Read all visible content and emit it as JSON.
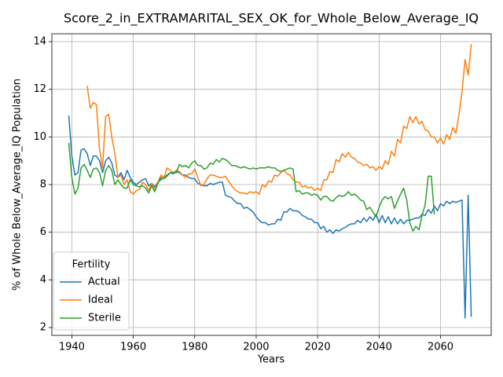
{
  "chart_data": {
    "type": "line",
    "title": "Score_2_in_EXTRAMARITAL_SEX_OK_for_Whole_Below_Average_IQ",
    "xlabel": "Years",
    "ylabel": "% of Whole Below_Average_IQ Population",
    "x": [
      1939,
      1940,
      1941,
      1942,
      1943,
      1944,
      1945,
      1946,
      1947,
      1948,
      1949,
      1950,
      1951,
      1952,
      1953,
      1954,
      1955,
      1956,
      1957,
      1958,
      1959,
      1960,
      1961,
      1962,
      1963,
      1964,
      1965,
      1966,
      1967,
      1968,
      1969,
      1970,
      1971,
      1972,
      1973,
      1974,
      1975,
      1976,
      1977,
      1978,
      1979,
      1980,
      1981,
      1982,
      1983,
      1984,
      1985,
      1986,
      1987,
      1988,
      1989,
      1990,
      1991,
      1992,
      1993,
      1994,
      1995,
      1996,
      1997,
      1998,
      1999,
      2000,
      2001,
      2002,
      2003,
      2004,
      2005,
      2006,
      2007,
      2008,
      2009,
      2010,
      2011,
      2012,
      2013,
      2014,
      2015,
      2016,
      2017,
      2018,
      2019,
      2020,
      2021,
      2022,
      2023,
      2024,
      2025,
      2026,
      2027,
      2028,
      2029,
      2030,
      2031,
      2032,
      2033,
      2034,
      2035,
      2036,
      2037,
      2038,
      2039,
      2040,
      2041,
      2042,
      2043,
      2044,
      2045,
      2046,
      2047,
      2048,
      2049,
      2050,
      2051,
      2052,
      2053,
      2054,
      2055,
      2056,
      2057,
      2058,
      2059,
      2060,
      2061,
      2062,
      2063,
      2064,
      2065,
      2066,
      2067,
      2068,
      2069,
      2070
    ],
    "series": [
      {
        "name": "Actual",
        "color": "#1f77b4",
        "values": [
          10.9,
          9.2,
          8.4,
          8.5,
          9.45,
          9.5,
          9.3,
          8.8,
          9.2,
          9.2,
          9.0,
          8.5,
          9.0,
          9.15,
          8.9,
          8.4,
          8.3,
          8.5,
          8.2,
          8.6,
          8.3,
          8.1,
          8.0,
          8.1,
          8.2,
          8.25,
          7.95,
          8.05,
          7.9,
          8.1,
          8.2,
          8.3,
          8.4,
          8.5,
          8.45,
          8.55,
          8.5,
          8.4,
          8.4,
          8.3,
          8.25,
          8.25,
          8.05,
          8.0,
          7.95,
          7.95,
          8.05,
          8.0,
          8.05,
          8.1,
          8.1,
          7.55,
          7.5,
          7.45,
          7.3,
          7.2,
          7.2,
          7.0,
          7.05,
          6.95,
          6.85,
          6.65,
          6.5,
          6.4,
          6.4,
          6.3,
          6.35,
          6.35,
          6.55,
          6.5,
          6.85,
          6.85,
          7.0,
          6.9,
          6.9,
          6.85,
          6.7,
          6.65,
          6.55,
          6.55,
          6.4,
          6.4,
          6.15,
          6.25,
          6.0,
          6.1,
          5.95,
          6.1,
          6.05,
          6.15,
          6.2,
          6.3,
          6.35,
          6.35,
          6.5,
          6.4,
          6.6,
          6.45,
          6.65,
          6.5,
          6.75,
          6.4,
          6.7,
          6.4,
          6.65,
          6.35,
          6.6,
          6.35,
          6.55,
          6.35,
          6.5,
          6.5,
          6.55,
          6.6,
          6.6,
          6.75,
          6.7,
          6.95,
          6.8,
          7.1,
          6.9,
          7.2,
          7.1,
          7.3,
          7.2,
          7.3,
          7.25,
          7.3,
          7.35,
          2.4,
          7.55,
          2.45
        ]
      },
      {
        "name": "Ideal",
        "color": "#ff7f0e",
        "values": [
          null,
          null,
          null,
          null,
          null,
          null,
          12.15,
          11.2,
          11.45,
          11.35,
          9.5,
          8.7,
          10.85,
          10.95,
          10.0,
          9.3,
          8.3,
          8.4,
          8.0,
          8.2,
          7.7,
          7.6,
          7.75,
          7.8,
          8.1,
          8.0,
          7.75,
          8.05,
          7.75,
          8.1,
          8.4,
          8.3,
          8.7,
          8.6,
          8.5,
          8.6,
          8.55,
          8.4,
          8.3,
          8.45,
          8.45,
          8.65,
          8.3,
          7.95,
          8.0,
          8.25,
          8.4,
          8.4,
          8.35,
          8.3,
          8.3,
          8.35,
          8.15,
          7.95,
          7.8,
          7.7,
          7.65,
          7.65,
          7.6,
          7.7,
          7.65,
          7.7,
          7.6,
          8.0,
          7.9,
          8.15,
          8.1,
          8.4,
          8.35,
          8.5,
          8.6,
          8.45,
          8.4,
          8.2,
          8.1,
          8.1,
          7.9,
          7.95,
          7.85,
          7.9,
          7.75,
          7.85,
          7.75,
          8.2,
          8.2,
          8.55,
          8.5,
          9.05,
          8.95,
          9.3,
          9.15,
          9.35,
          9.15,
          9.1,
          8.95,
          8.9,
          8.8,
          8.85,
          8.7,
          8.75,
          8.6,
          8.75,
          8.65,
          9.0,
          8.85,
          9.4,
          9.2,
          9.9,
          9.75,
          10.45,
          10.35,
          10.85,
          10.6,
          10.85,
          10.55,
          10.65,
          10.3,
          10.25,
          10.0,
          10.0,
          9.75,
          9.95,
          9.7,
          10.1,
          9.9,
          10.4,
          10.15,
          10.95,
          11.9,
          13.25,
          12.6,
          13.9
        ]
      },
      {
        "name": "Sterile",
        "color": "#2ca02c",
        "values": [
          9.75,
          8.3,
          7.6,
          7.85,
          8.7,
          8.85,
          8.6,
          8.3,
          8.65,
          8.7,
          8.5,
          7.95,
          8.6,
          8.8,
          8.6,
          8.0,
          8.2,
          8.0,
          7.85,
          7.85,
          8.2,
          8.0,
          7.95,
          7.9,
          7.95,
          7.85,
          7.65,
          7.95,
          7.7,
          8.05,
          8.3,
          8.25,
          8.35,
          8.5,
          8.5,
          8.5,
          8.85,
          8.75,
          8.8,
          8.7,
          8.9,
          9.0,
          8.8,
          8.8,
          8.65,
          8.7,
          8.9,
          8.85,
          9.05,
          8.95,
          9.1,
          9.05,
          8.95,
          8.8,
          8.8,
          8.75,
          8.7,
          8.75,
          8.7,
          8.65,
          8.7,
          8.65,
          8.7,
          8.7,
          8.7,
          8.75,
          8.7,
          8.7,
          8.6,
          8.55,
          8.6,
          8.65,
          8.7,
          8.65,
          7.7,
          7.75,
          7.6,
          7.65,
          7.65,
          7.55,
          7.6,
          7.55,
          7.35,
          7.5,
          7.5,
          7.35,
          7.3,
          7.45,
          7.55,
          7.5,
          7.55,
          7.7,
          7.55,
          7.6,
          7.5,
          7.35,
          7.3,
          6.95,
          7.05,
          6.85,
          6.65,
          7.05,
          7.35,
          7.5,
          7.4,
          7.5,
          7.0,
          7.3,
          7.6,
          7.85,
          7.35,
          6.4,
          6.05,
          6.25,
          6.1,
          6.7,
          7.15,
          8.35,
          8.35,
          6.75,
          null,
          null,
          null,
          null,
          null,
          null,
          null,
          null,
          null,
          null,
          null,
          null
        ]
      }
    ],
    "xlim": [
      1933.5,
      2076.5
    ],
    "ylim": [
      1.67,
      14.33
    ],
    "xticks": [
      1940,
      1960,
      1980,
      2000,
      2020,
      2040,
      2060
    ],
    "yticks": [
      2,
      4,
      6,
      8,
      10,
      12,
      14
    ],
    "grid": true,
    "legend": {
      "title": "Fertility",
      "loc": "lower left"
    }
  }
}
